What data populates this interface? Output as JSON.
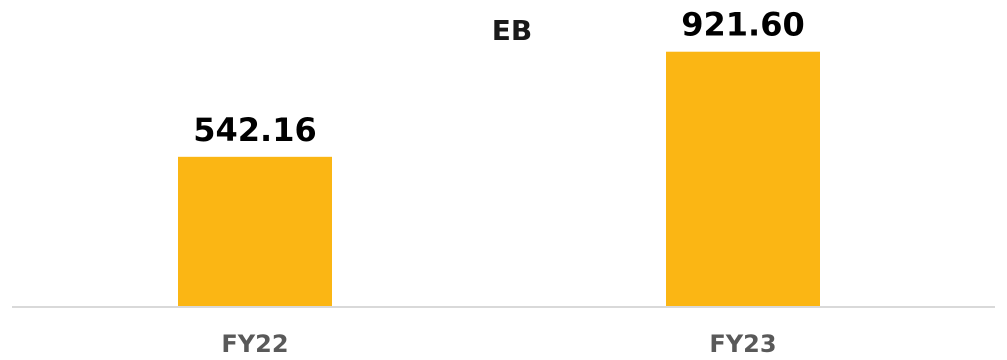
{
  "chart_data": {
    "type": "bar",
    "title": "EB",
    "categories": [
      "FY22",
      "FY23"
    ],
    "values": [
      542.16,
      921.6
    ],
    "value_labels": [
      "542.16",
      "921.60"
    ],
    "xlabel": "",
    "ylabel": "",
    "ylim": [
      0,
      1000
    ],
    "grid": false,
    "legend": "none",
    "bar_color": "#FBB614",
    "axis_color": "#D9D9D9"
  }
}
